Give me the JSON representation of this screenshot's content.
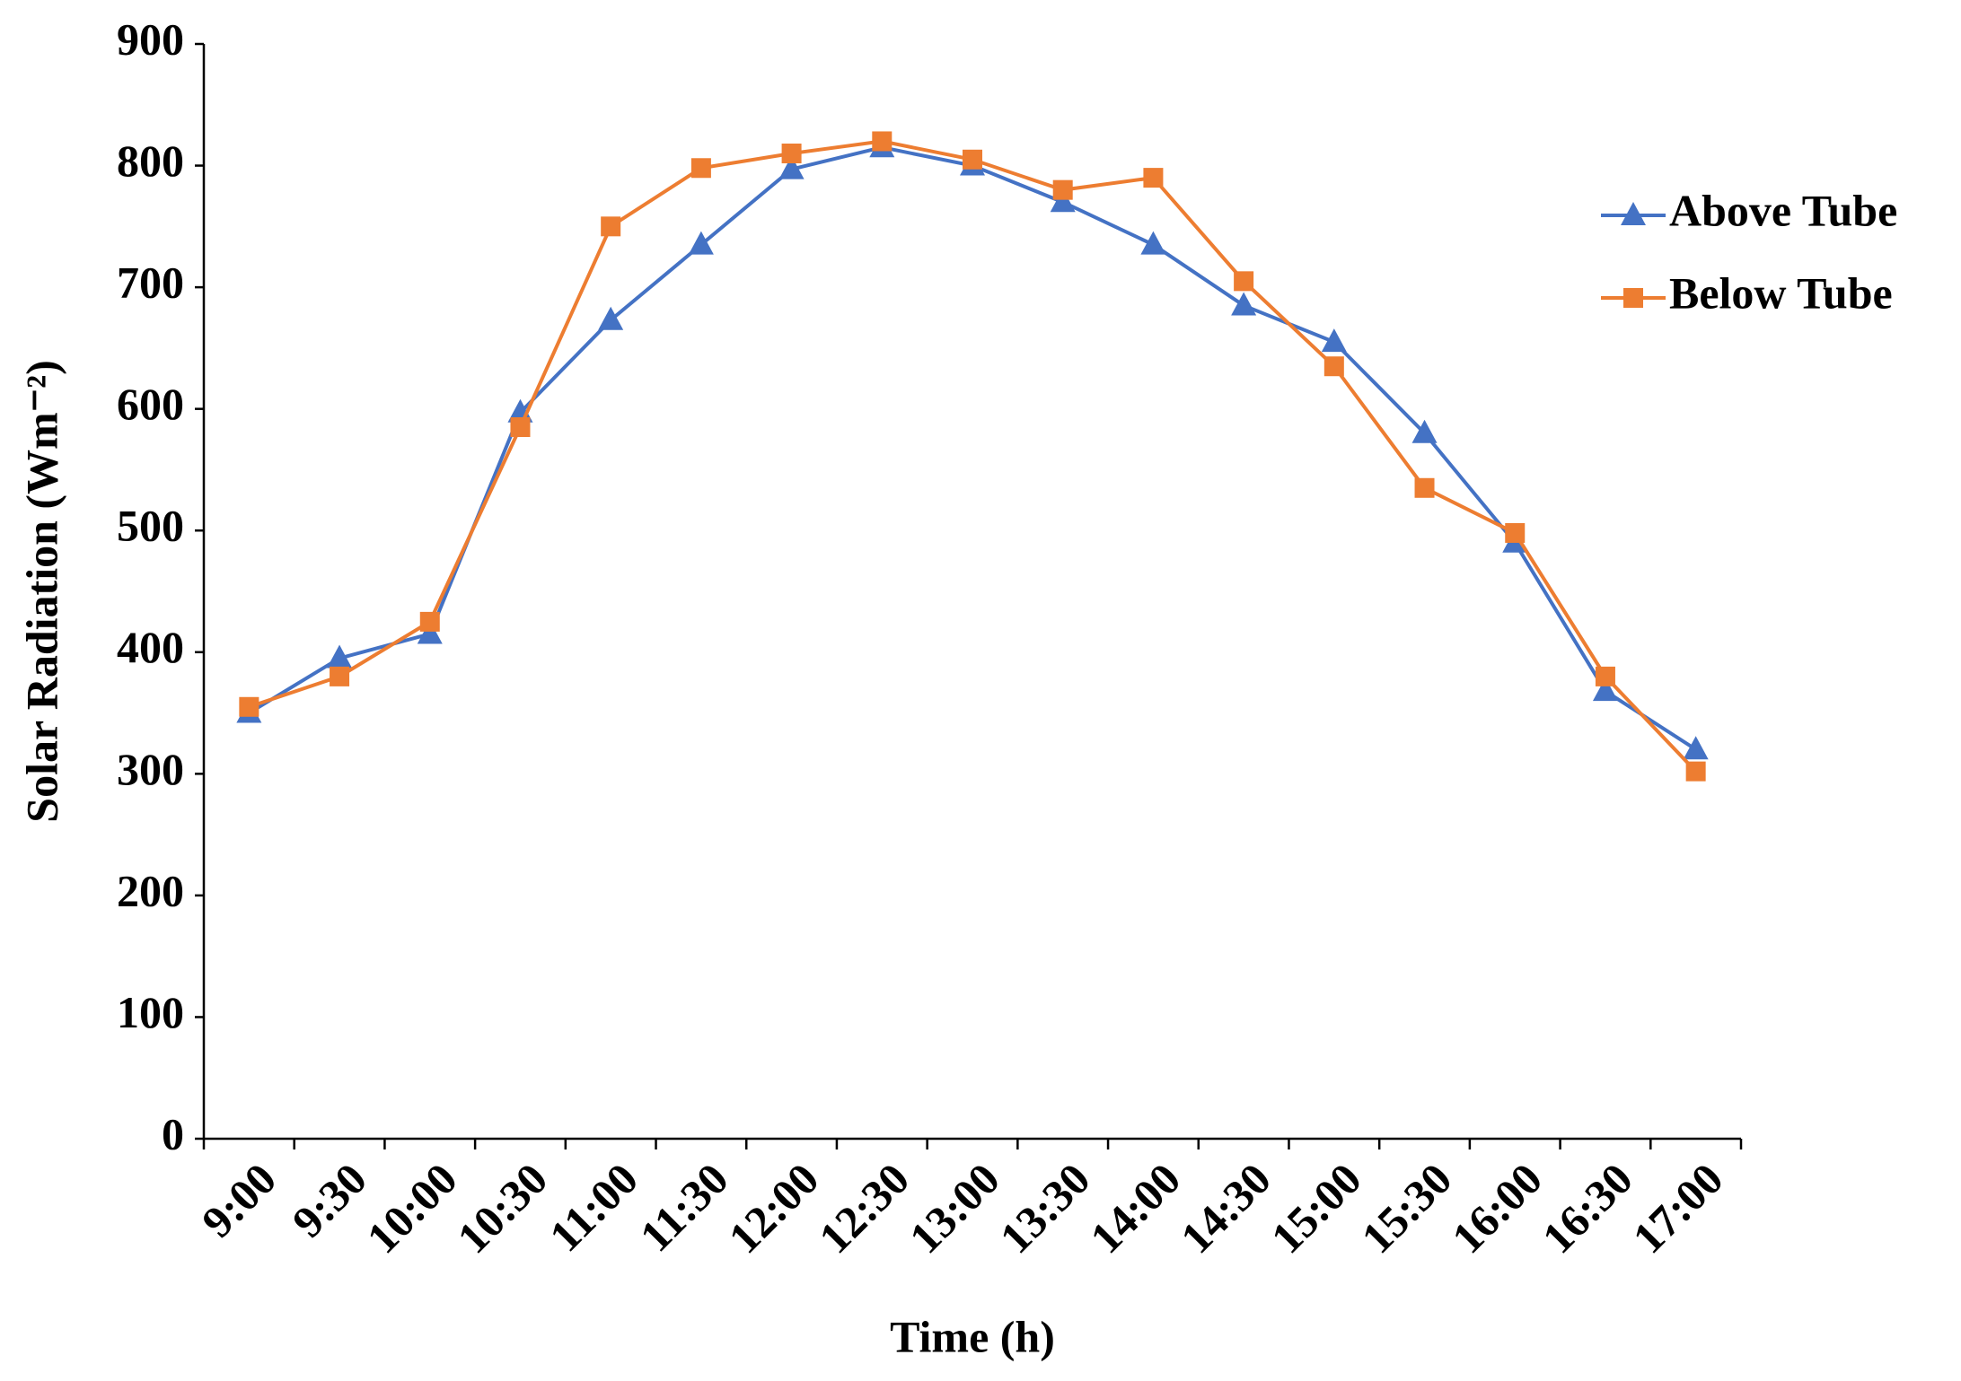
{
  "chart_data": {
    "type": "line",
    "x_label": "Time (h)",
    "y_label": "Solar Radiation (Wm⁻²)",
    "categories": [
      "9:00",
      "9:30",
      "10:00",
      "10:30",
      "11:00",
      "11:30",
      "12:00",
      "12:30",
      "13:00",
      "13:30",
      "14:00",
      "14:30",
      "15:00",
      "15:30",
      "16:00",
      "16:30",
      "17:00"
    ],
    "series": [
      {
        "name": "Above Tube",
        "color": "#4472c4",
        "marker": "triangle",
        "values": [
          350,
          395,
          415,
          597,
          673,
          735,
          797,
          815,
          800,
          770,
          735,
          685,
          655,
          580,
          490,
          368,
          320
        ]
      },
      {
        "name": "Below Tube",
        "color": "#ed7d31",
        "marker": "square",
        "values": [
          355,
          380,
          425,
          585,
          750,
          798,
          810,
          820,
          805,
          780,
          790,
          705,
          635,
          535,
          498,
          380,
          302
        ]
      }
    ],
    "ylim": [
      0,
      900
    ],
    "yticks": [
      0,
      100,
      200,
      300,
      400,
      500,
      600,
      700,
      800,
      900
    ],
    "grid": false,
    "legend": "right"
  }
}
